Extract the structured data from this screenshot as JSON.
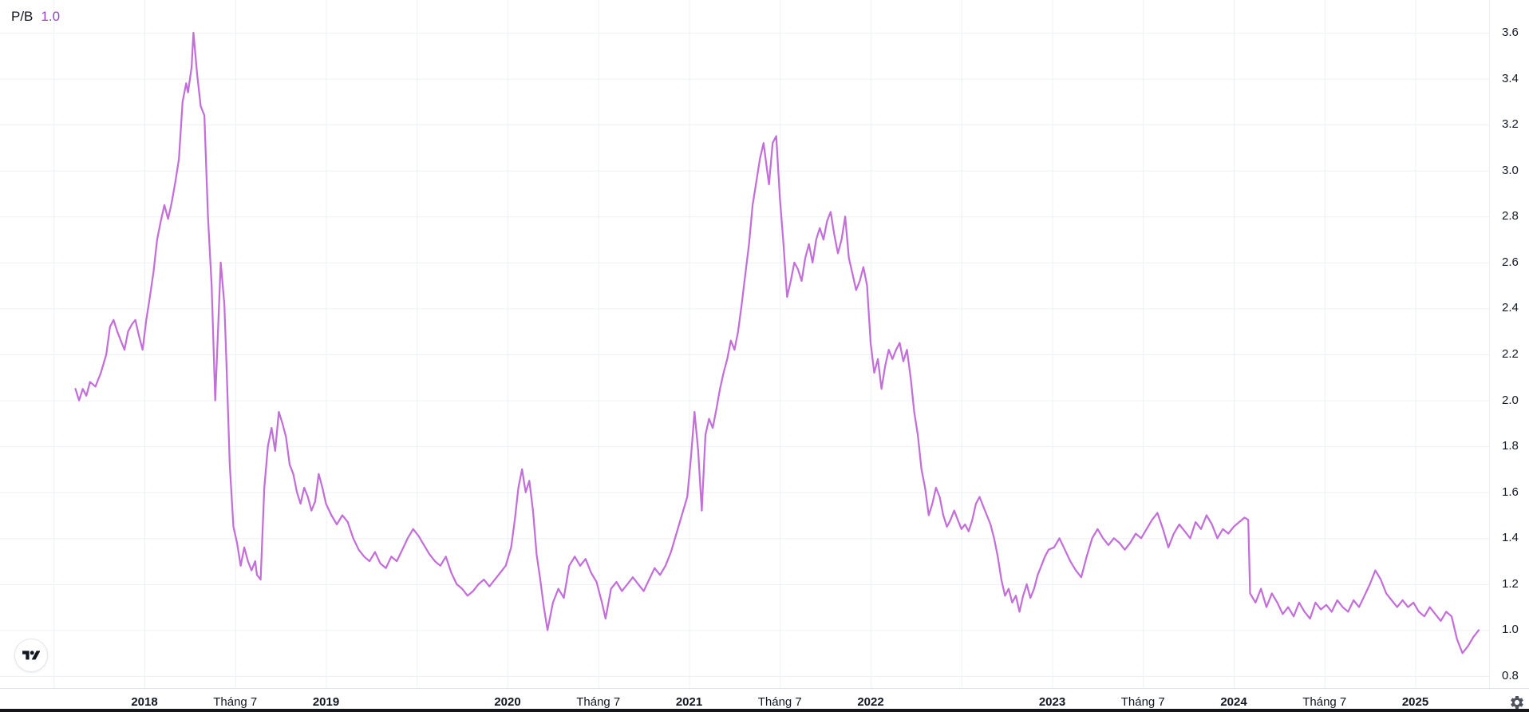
{
  "legend": {
    "symbol": "P/B",
    "value": "1.0"
  },
  "colors": {
    "line": "#c36fd9",
    "legend_value": "#9c40cc",
    "grid": "#edf0f4",
    "axis_text": "#131722",
    "axis_border": "#e0e3eb",
    "bottom_bar": "#14161a",
    "background": "#ffffff"
  },
  "icons": {
    "logo": "tradingview-logo",
    "settings": "gear-icon"
  },
  "chart_data": {
    "type": "line",
    "title": "P/B",
    "series_name": "P/B",
    "last_value": 1.0,
    "x_unit": "decimal_year",
    "x_range": [
      2017.55,
      2025.45
    ],
    "ylim": [
      0.748,
      3.742
    ],
    "grid": true,
    "legend_position": "top-left",
    "y_axis_side": "right",
    "y_ticks": [
      3.6,
      3.4,
      3.2,
      3.0,
      2.8,
      2.6,
      2.4,
      2.2,
      2.0,
      1.8,
      1.6,
      1.4,
      1.2,
      1.0,
      0.8
    ],
    "x_grid_ticks": [
      2017.5,
      2018.0,
      2018.5,
      2019.0,
      2019.5,
      2020.0,
      2020.5,
      2021.0,
      2021.5,
      2022.0,
      2022.5,
      2023.0,
      2023.5,
      2024.0,
      2024.5,
      2025.0
    ],
    "x_ticks": [
      {
        "t": 2018.0,
        "label": "2018",
        "major": true
      },
      {
        "t": 2018.5,
        "label": "Tháng 7",
        "major": false
      },
      {
        "t": 2019.0,
        "label": "2019",
        "major": true
      },
      {
        "t": 2020.0,
        "label": "2020",
        "major": true
      },
      {
        "t": 2020.5,
        "label": "Tháng 7",
        "major": false
      },
      {
        "t": 2021.0,
        "label": "2021",
        "major": true
      },
      {
        "t": 2021.5,
        "label": "Tháng 7",
        "major": false
      },
      {
        "t": 2022.0,
        "label": "2022",
        "major": true
      },
      {
        "t": 2023.0,
        "label": "2023",
        "major": true
      },
      {
        "t": 2023.5,
        "label": "Tháng 7",
        "major": false
      },
      {
        "t": 2024.0,
        "label": "2024",
        "major": true
      },
      {
        "t": 2024.5,
        "label": "Tháng 7",
        "major": false
      },
      {
        "t": 2025.0,
        "label": "2025",
        "major": true
      }
    ],
    "points": [
      [
        2017.62,
        2.05
      ],
      [
        2017.64,
        2.0
      ],
      [
        2017.66,
        2.05
      ],
      [
        2017.68,
        2.02
      ],
      [
        2017.7,
        2.08
      ],
      [
        2017.73,
        2.06
      ],
      [
        2017.76,
        2.12
      ],
      [
        2017.79,
        2.2
      ],
      [
        2017.81,
        2.32
      ],
      [
        2017.83,
        2.35
      ],
      [
        2017.85,
        2.3
      ],
      [
        2017.87,
        2.26
      ],
      [
        2017.89,
        2.22
      ],
      [
        2017.91,
        2.3
      ],
      [
        2017.93,
        2.33
      ],
      [
        2017.95,
        2.35
      ],
      [
        2017.97,
        2.28
      ],
      [
        2017.99,
        2.22
      ],
      [
        2018.01,
        2.35
      ],
      [
        2018.03,
        2.45
      ],
      [
        2018.05,
        2.56
      ],
      [
        2018.07,
        2.7
      ],
      [
        2018.09,
        2.78
      ],
      [
        2018.11,
        2.85
      ],
      [
        2018.13,
        2.79
      ],
      [
        2018.15,
        2.86
      ],
      [
        2018.17,
        2.95
      ],
      [
        2018.19,
        3.05
      ],
      [
        2018.21,
        3.3
      ],
      [
        2018.23,
        3.38
      ],
      [
        2018.24,
        3.34
      ],
      [
        2018.26,
        3.45
      ],
      [
        2018.27,
        3.6
      ],
      [
        2018.29,
        3.42
      ],
      [
        2018.31,
        3.28
      ],
      [
        2018.33,
        3.24
      ],
      [
        2018.35,
        2.8
      ],
      [
        2018.37,
        2.5
      ],
      [
        2018.39,
        2.0
      ],
      [
        2018.4,
        2.2
      ],
      [
        2018.42,
        2.6
      ],
      [
        2018.44,
        2.42
      ],
      [
        2018.45,
        2.2
      ],
      [
        2018.47,
        1.72
      ],
      [
        2018.49,
        1.45
      ],
      [
        2018.51,
        1.38
      ],
      [
        2018.53,
        1.28
      ],
      [
        2018.55,
        1.36
      ],
      [
        2018.57,
        1.3
      ],
      [
        2018.59,
        1.26
      ],
      [
        2018.61,
        1.3
      ],
      [
        2018.62,
        1.24
      ],
      [
        2018.64,
        1.22
      ],
      [
        2018.66,
        1.62
      ],
      [
        2018.68,
        1.8
      ],
      [
        2018.7,
        1.88
      ],
      [
        2018.72,
        1.78
      ],
      [
        2018.74,
        1.95
      ],
      [
        2018.76,
        1.9
      ],
      [
        2018.78,
        1.84
      ],
      [
        2018.8,
        1.72
      ],
      [
        2018.82,
        1.68
      ],
      [
        2018.84,
        1.6
      ],
      [
        2018.86,
        1.55
      ],
      [
        2018.88,
        1.62
      ],
      [
        2018.9,
        1.58
      ],
      [
        2018.92,
        1.52
      ],
      [
        2018.94,
        1.56
      ],
      [
        2018.96,
        1.68
      ],
      [
        2018.98,
        1.62
      ],
      [
        2019.0,
        1.55
      ],
      [
        2019.03,
        1.5
      ],
      [
        2019.06,
        1.46
      ],
      [
        2019.09,
        1.5
      ],
      [
        2019.12,
        1.47
      ],
      [
        2019.15,
        1.4
      ],
      [
        2019.18,
        1.35
      ],
      [
        2019.21,
        1.32
      ],
      [
        2019.24,
        1.3
      ],
      [
        2019.27,
        1.34
      ],
      [
        2019.3,
        1.29
      ],
      [
        2019.33,
        1.27
      ],
      [
        2019.36,
        1.32
      ],
      [
        2019.39,
        1.3
      ],
      [
        2019.42,
        1.35
      ],
      [
        2019.45,
        1.4
      ],
      [
        2019.48,
        1.44
      ],
      [
        2019.51,
        1.41
      ],
      [
        2019.54,
        1.37
      ],
      [
        2019.57,
        1.33
      ],
      [
        2019.6,
        1.3
      ],
      [
        2019.63,
        1.28
      ],
      [
        2019.66,
        1.32
      ],
      [
        2019.69,
        1.25
      ],
      [
        2019.72,
        1.2
      ],
      [
        2019.75,
        1.18
      ],
      [
        2019.78,
        1.15
      ],
      [
        2019.81,
        1.17
      ],
      [
        2019.84,
        1.2
      ],
      [
        2019.87,
        1.22
      ],
      [
        2019.9,
        1.19
      ],
      [
        2019.93,
        1.22
      ],
      [
        2019.96,
        1.25
      ],
      [
        2019.99,
        1.28
      ],
      [
        2020.02,
        1.36
      ],
      [
        2020.04,
        1.48
      ],
      [
        2020.06,
        1.62
      ],
      [
        2020.08,
        1.7
      ],
      [
        2020.1,
        1.6
      ],
      [
        2020.12,
        1.65
      ],
      [
        2020.14,
        1.52
      ],
      [
        2020.16,
        1.33
      ],
      [
        2020.18,
        1.22
      ],
      [
        2020.2,
        1.1
      ],
      [
        2020.22,
        1.0
      ],
      [
        2020.25,
        1.12
      ],
      [
        2020.28,
        1.18
      ],
      [
        2020.31,
        1.14
      ],
      [
        2020.34,
        1.28
      ],
      [
        2020.37,
        1.32
      ],
      [
        2020.4,
        1.28
      ],
      [
        2020.43,
        1.31
      ],
      [
        2020.46,
        1.25
      ],
      [
        2020.49,
        1.21
      ],
      [
        2020.52,
        1.12
      ],
      [
        2020.54,
        1.05
      ],
      [
        2020.57,
        1.18
      ],
      [
        2020.6,
        1.21
      ],
      [
        2020.63,
        1.17
      ],
      [
        2020.66,
        1.2
      ],
      [
        2020.69,
        1.23
      ],
      [
        2020.72,
        1.2
      ],
      [
        2020.75,
        1.17
      ],
      [
        2020.78,
        1.22
      ],
      [
        2020.81,
        1.27
      ],
      [
        2020.84,
        1.24
      ],
      [
        2020.87,
        1.28
      ],
      [
        2020.9,
        1.34
      ],
      [
        2020.93,
        1.42
      ],
      [
        2020.96,
        1.5
      ],
      [
        2020.99,
        1.58
      ],
      [
        2021.01,
        1.75
      ],
      [
        2021.03,
        1.95
      ],
      [
        2021.05,
        1.78
      ],
      [
        2021.07,
        1.52
      ],
      [
        2021.09,
        1.85
      ],
      [
        2021.11,
        1.92
      ],
      [
        2021.13,
        1.88
      ],
      [
        2021.15,
        1.96
      ],
      [
        2021.17,
        2.05
      ],
      [
        2021.19,
        2.12
      ],
      [
        2021.21,
        2.18
      ],
      [
        2021.23,
        2.26
      ],
      [
        2021.25,
        2.22
      ],
      [
        2021.27,
        2.3
      ],
      [
        2021.29,
        2.42
      ],
      [
        2021.31,
        2.55
      ],
      [
        2021.33,
        2.68
      ],
      [
        2021.35,
        2.85
      ],
      [
        2021.37,
        2.95
      ],
      [
        2021.39,
        3.05
      ],
      [
        2021.41,
        3.12
      ],
      [
        2021.43,
        3.0
      ],
      [
        2021.44,
        2.94
      ],
      [
        2021.46,
        3.12
      ],
      [
        2021.48,
        3.15
      ],
      [
        2021.5,
        2.88
      ],
      [
        2021.52,
        2.68
      ],
      [
        2021.54,
        2.45
      ],
      [
        2021.56,
        2.52
      ],
      [
        2021.58,
        2.6
      ],
      [
        2021.6,
        2.57
      ],
      [
        2021.62,
        2.52
      ],
      [
        2021.64,
        2.62
      ],
      [
        2021.66,
        2.68
      ],
      [
        2021.68,
        2.6
      ],
      [
        2021.7,
        2.7
      ],
      [
        2021.72,
        2.75
      ],
      [
        2021.74,
        2.7
      ],
      [
        2021.76,
        2.78
      ],
      [
        2021.78,
        2.82
      ],
      [
        2021.8,
        2.72
      ],
      [
        2021.82,
        2.64
      ],
      [
        2021.84,
        2.7
      ],
      [
        2021.86,
        2.8
      ],
      [
        2021.88,
        2.62
      ],
      [
        2021.9,
        2.55
      ],
      [
        2021.92,
        2.48
      ],
      [
        2021.94,
        2.52
      ],
      [
        2021.96,
        2.58
      ],
      [
        2021.98,
        2.5
      ],
      [
        2022.0,
        2.25
      ],
      [
        2022.02,
        2.12
      ],
      [
        2022.04,
        2.18
      ],
      [
        2022.06,
        2.05
      ],
      [
        2022.08,
        2.15
      ],
      [
        2022.1,
        2.22
      ],
      [
        2022.12,
        2.18
      ],
      [
        2022.14,
        2.22
      ],
      [
        2022.16,
        2.25
      ],
      [
        2022.18,
        2.17
      ],
      [
        2022.2,
        2.22
      ],
      [
        2022.22,
        2.1
      ],
      [
        2022.24,
        1.95
      ],
      [
        2022.26,
        1.85
      ],
      [
        2022.28,
        1.7
      ],
      [
        2022.3,
        1.62
      ],
      [
        2022.32,
        1.5
      ],
      [
        2022.34,
        1.55
      ],
      [
        2022.36,
        1.62
      ],
      [
        2022.38,
        1.58
      ],
      [
        2022.4,
        1.5
      ],
      [
        2022.42,
        1.45
      ],
      [
        2022.44,
        1.48
      ],
      [
        2022.46,
        1.52
      ],
      [
        2022.48,
        1.48
      ],
      [
        2022.5,
        1.44
      ],
      [
        2022.52,
        1.46
      ],
      [
        2022.54,
        1.43
      ],
      [
        2022.56,
        1.48
      ],
      [
        2022.58,
        1.55
      ],
      [
        2022.6,
        1.58
      ],
      [
        2022.62,
        1.54
      ],
      [
        2022.64,
        1.5
      ],
      [
        2022.66,
        1.46
      ],
      [
        2022.68,
        1.4
      ],
      [
        2022.7,
        1.32
      ],
      [
        2022.72,
        1.22
      ],
      [
        2022.74,
        1.15
      ],
      [
        2022.76,
        1.18
      ],
      [
        2022.78,
        1.12
      ],
      [
        2022.8,
        1.15
      ],
      [
        2022.82,
        1.08
      ],
      [
        2022.84,
        1.15
      ],
      [
        2022.86,
        1.2
      ],
      [
        2022.88,
        1.14
      ],
      [
        2022.9,
        1.18
      ],
      [
        2022.92,
        1.24
      ],
      [
        2022.94,
        1.28
      ],
      [
        2022.96,
        1.32
      ],
      [
        2022.98,
        1.35
      ],
      [
        2023.01,
        1.36
      ],
      [
        2023.04,
        1.4
      ],
      [
        2023.07,
        1.35
      ],
      [
        2023.1,
        1.3
      ],
      [
        2023.13,
        1.26
      ],
      [
        2023.16,
        1.23
      ],
      [
        2023.19,
        1.32
      ],
      [
        2023.22,
        1.4
      ],
      [
        2023.25,
        1.44
      ],
      [
        2023.28,
        1.4
      ],
      [
        2023.31,
        1.37
      ],
      [
        2023.34,
        1.4
      ],
      [
        2023.37,
        1.38
      ],
      [
        2023.4,
        1.35
      ],
      [
        2023.43,
        1.38
      ],
      [
        2023.46,
        1.42
      ],
      [
        2023.49,
        1.4
      ],
      [
        2023.52,
        1.44
      ],
      [
        2023.55,
        1.48
      ],
      [
        2023.58,
        1.51
      ],
      [
        2023.61,
        1.44
      ],
      [
        2023.64,
        1.36
      ],
      [
        2023.67,
        1.42
      ],
      [
        2023.7,
        1.46
      ],
      [
        2023.73,
        1.43
      ],
      [
        2023.76,
        1.4
      ],
      [
        2023.79,
        1.47
      ],
      [
        2023.82,
        1.44
      ],
      [
        2023.85,
        1.5
      ],
      [
        2023.88,
        1.46
      ],
      [
        2023.91,
        1.4
      ],
      [
        2023.94,
        1.44
      ],
      [
        2023.97,
        1.42
      ],
      [
        2024.0,
        1.45
      ],
      [
        2024.03,
        1.47
      ],
      [
        2024.06,
        1.49
      ],
      [
        2024.08,
        1.48
      ],
      [
        2024.09,
        1.16
      ],
      [
        2024.12,
        1.12
      ],
      [
        2024.15,
        1.18
      ],
      [
        2024.18,
        1.1
      ],
      [
        2024.21,
        1.16
      ],
      [
        2024.24,
        1.12
      ],
      [
        2024.27,
        1.07
      ],
      [
        2024.3,
        1.1
      ],
      [
        2024.33,
        1.06
      ],
      [
        2024.36,
        1.12
      ],
      [
        2024.39,
        1.08
      ],
      [
        2024.42,
        1.05
      ],
      [
        2024.45,
        1.12
      ],
      [
        2024.48,
        1.09
      ],
      [
        2024.51,
        1.11
      ],
      [
        2024.54,
        1.08
      ],
      [
        2024.57,
        1.13
      ],
      [
        2024.6,
        1.1
      ],
      [
        2024.63,
        1.08
      ],
      [
        2024.66,
        1.13
      ],
      [
        2024.69,
        1.1
      ],
      [
        2024.72,
        1.15
      ],
      [
        2024.75,
        1.2
      ],
      [
        2024.78,
        1.26
      ],
      [
        2024.81,
        1.22
      ],
      [
        2024.84,
        1.16
      ],
      [
        2024.87,
        1.13
      ],
      [
        2024.9,
        1.1
      ],
      [
        2024.93,
        1.13
      ],
      [
        2024.96,
        1.1
      ],
      [
        2024.99,
        1.12
      ],
      [
        2025.02,
        1.08
      ],
      [
        2025.05,
        1.06
      ],
      [
        2025.08,
        1.1
      ],
      [
        2025.11,
        1.07
      ],
      [
        2025.14,
        1.04
      ],
      [
        2025.17,
        1.08
      ],
      [
        2025.2,
        1.06
      ],
      [
        2025.23,
        0.96
      ],
      [
        2025.26,
        0.9
      ],
      [
        2025.29,
        0.93
      ],
      [
        2025.32,
        0.97
      ],
      [
        2025.35,
        1.0
      ]
    ]
  }
}
